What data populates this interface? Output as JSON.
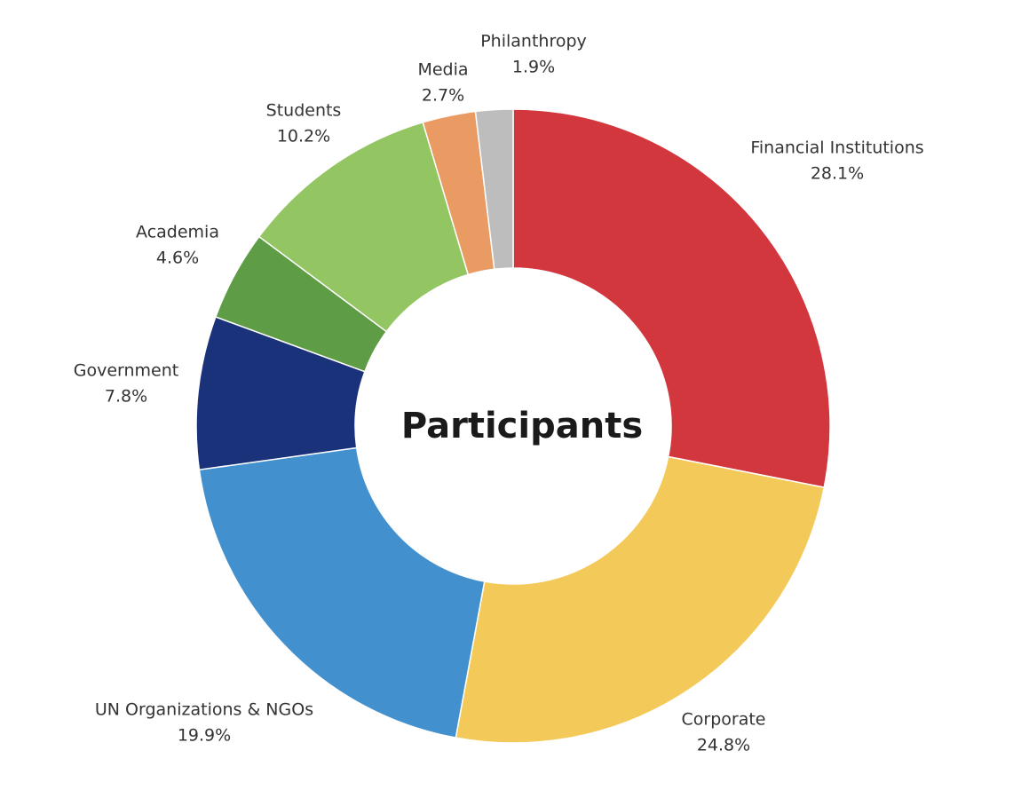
{
  "chart_data": {
    "type": "donut",
    "title": "Participants",
    "categories": [
      "Financial Institutions",
      "Corporate",
      "UN Organizations & NGOs",
      "Government",
      "Academia",
      "Students",
      "Media",
      "Philanthropy"
    ],
    "values": [
      28.1,
      24.8,
      19.9,
      7.8,
      4.6,
      10.2,
      2.7,
      1.9
    ],
    "value_labels": [
      "28.1%",
      "24.8%",
      "19.9%",
      "7.8%",
      "4.6%",
      "10.2%",
      "2.7%",
      "1.9%"
    ],
    "colors": [
      "#d2373e",
      "#f3ca5a",
      "#4290cd",
      "#1a327a",
      "#5e9c45",
      "#93c563",
      "#e99b63",
      "#bdbdbd"
    ]
  }
}
